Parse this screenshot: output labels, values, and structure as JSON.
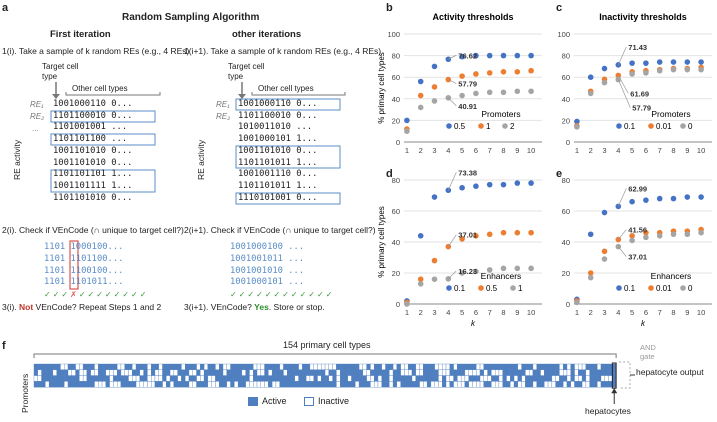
{
  "panel_a": {
    "label": "a",
    "title": "Random Sampling Algorithm",
    "col1_header": "First iteration",
    "col2_header": "other iterations",
    "step1_left": "1(i). Take a sample of k random REs (e.g., 4 REs)",
    "step1_right": "1(i+1). Take a sample of k random REs (e.g., 4 REs)",
    "target_label": "Target cell type",
    "other_label": "Other cell types",
    "y_axis": "RE activity",
    "re_labels": [
      "RE₁",
      "RE₂",
      "..."
    ],
    "left_rows": [
      "1001000110 0...",
      "1101100010 0...",
      "1101001001 ...",
      "1101101100 ...",
      "1001101010 0...",
      "1001101010 0...",
      "1101101101 1...",
      "1001101111 1...",
      "1101101010 0..."
    ],
    "right_rows": [
      "1001000110 0...",
      "1101100010 0...",
      "1010011010 ...",
      "1001000101 1...",
      "1001101010 0...",
      "1101101011 1...",
      "1001001110 0...",
      "1101101011 1...",
      "1110101001 0..."
    ],
    "step2_left": "2(i). Check if VEnCode (∩ unique to target cell?)",
    "step2_right": "2(i+1). Check if VEnCode (∩ unique to target cell?)",
    "check_left": [
      "1101 1000100...",
      "1101 1101100...",
      "1101 1100100...",
      "1101 1101011..."
    ],
    "check_right": [
      "1001000100 ...",
      "1001001011 ...",
      "1001001010 ...",
      "1001000101 ..."
    ],
    "step3_left_prefix": "3(i). ",
    "step3_left_not": "Not",
    "step3_left_rest": " VEnCode? Repeat Steps 1 and 2",
    "step3_right_prefix": "3(i+1). VEnCode? ",
    "step3_right_yes": "Yes",
    "step3_right_rest": ". Store or stop."
  },
  "panel_f": {
    "label": "f",
    "top_label": "154 primary cell types",
    "y_label": "Promoters",
    "legend_active": "Active",
    "legend_inactive": "Inactive",
    "and_gate": "AND gate",
    "output": "hepatocyte output",
    "hepatocytes": "hepatocytes",
    "colors": {
      "active": "#4f7fbf",
      "inactive": "#ffffff"
    }
  },
  "chart_data": [
    {
      "panel": "b",
      "type": "scatter",
      "title": "Activity thresholds",
      "ylabel": "% primary cell types",
      "xlabel": "",
      "x": [
        1,
        2,
        3,
        4,
        5,
        6,
        7,
        8,
        9,
        10
      ],
      "ylim": [
        0,
        100
      ],
      "yticks": [
        0,
        20,
        40,
        60,
        80,
        100
      ],
      "legend_title": "Promoters",
      "series": [
        {
          "name": "0.5",
          "color": "#4472c4",
          "values": [
            20,
            56,
            70,
            76.62,
            79,
            80,
            80,
            80,
            80,
            80
          ]
        },
        {
          "name": "1",
          "color": "#ed7d31",
          "values": [
            12,
            43,
            51,
            57.79,
            61,
            63,
            64,
            65,
            65,
            66
          ]
        },
        {
          "name": "2",
          "color": "#a5a5a5",
          "values": [
            10,
            32,
            38,
            40.91,
            43,
            45,
            46,
            46,
            47,
            47
          ]
        }
      ],
      "annotations": [
        "76.62",
        "57.79",
        "40.91"
      ]
    },
    {
      "panel": "c",
      "type": "scatter",
      "title": "Inactivity thresholds",
      "ylabel": "",
      "xlabel": "",
      "x": [
        1,
        2,
        3,
        4,
        5,
        6,
        7,
        8,
        9,
        10
      ],
      "ylim": [
        0,
        100
      ],
      "yticks": [
        0,
        20,
        40,
        60,
        80,
        100
      ],
      "legend_title": "Promoters",
      "series": [
        {
          "name": "0.1",
          "color": "#4472c4",
          "values": [
            19,
            60,
            68,
            71.43,
            73,
            73,
            74,
            74,
            74,
            74
          ]
        },
        {
          "name": "0.01",
          "color": "#ed7d31",
          "values": [
            15,
            47,
            58,
            61.69,
            65,
            66,
            67,
            68,
            68,
            69
          ]
        },
        {
          "name": "0",
          "color": "#a5a5a5",
          "values": [
            14,
            45,
            55,
            57.79,
            63,
            64,
            66,
            67,
            67,
            67
          ]
        }
      ],
      "annotations": [
        "71.43",
        "61.69",
        "57.79"
      ]
    },
    {
      "panel": "d",
      "type": "scatter",
      "title": "",
      "ylabel": "% primary cell types",
      "xlabel": "k",
      "x": [
        1,
        2,
        3,
        4,
        5,
        6,
        7,
        8,
        9,
        10
      ],
      "ylim": [
        0,
        80
      ],
      "yticks": [
        0,
        20,
        40,
        60,
        80
      ],
      "legend_title": "Enhancers",
      "series": [
        {
          "name": "0.1",
          "color": "#4472c4",
          "values": [
            2,
            44,
            69,
            73.38,
            75,
            76,
            77,
            77,
            78,
            78
          ]
        },
        {
          "name": "0.5",
          "color": "#ed7d31",
          "values": [
            1,
            16,
            28,
            37.01,
            42,
            44,
            45,
            46,
            46,
            46
          ]
        },
        {
          "name": "1",
          "color": "#a5a5a5",
          "values": [
            0,
            13,
            16,
            16.23,
            20,
            21,
            22,
            23,
            23,
            23
          ]
        }
      ],
      "annotations": [
        "73.38",
        "37.01",
        "16.23"
      ]
    },
    {
      "panel": "e",
      "type": "scatter",
      "title": "",
      "ylabel": "",
      "xlabel": "k",
      "x": [
        1,
        2,
        3,
        4,
        5,
        6,
        7,
        8,
        9,
        10
      ],
      "ylim": [
        0,
        80
      ],
      "yticks": [
        0,
        20,
        40,
        60,
        80
      ],
      "legend_title": "Enhancers",
      "series": [
        {
          "name": "0.1",
          "color": "#4472c4",
          "values": [
            3,
            45,
            59,
            62.99,
            66,
            67,
            68,
            68,
            69,
            69
          ]
        },
        {
          "name": "0.01",
          "color": "#ed7d31",
          "values": [
            2,
            20,
            34,
            41.56,
            44,
            46,
            46,
            47,
            47,
            48
          ]
        },
        {
          "name": "0",
          "color": "#a5a5a5",
          "values": [
            1,
            17,
            29,
            37.01,
            41,
            43,
            44,
            45,
            45,
            46
          ]
        }
      ],
      "annotations": [
        "62.99",
        "41.56",
        "37.01"
      ]
    }
  ]
}
